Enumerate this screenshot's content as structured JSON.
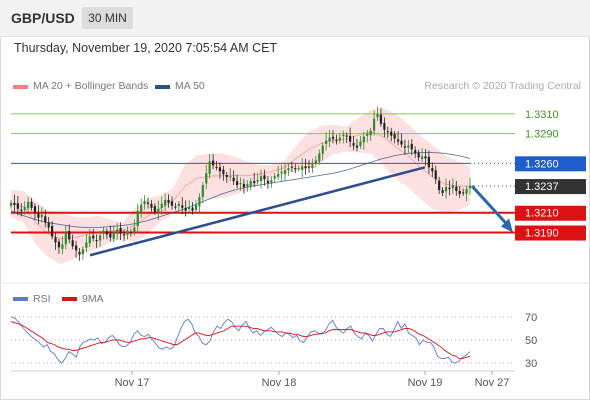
{
  "header": {
    "symbol": "GBP/USD",
    "timeframe": "30 MIN"
  },
  "timestamp": "Thursday, November 19, 2020 7:05:54 AM CET",
  "legend": {
    "bb_label": "MA 20 + Bollinger Bands",
    "ma50_label": "MA 50"
  },
  "credit": "Research © 2020 Trading Central",
  "indicator_legend": {
    "rsi_label": "RSI",
    "ma9_label": "9MA"
  },
  "colors": {
    "bb_band": "#fde0e0",
    "bb_line": "#f08080",
    "ma50": "#2e4d8f",
    "trendline": "#2e4d8f",
    "resistance_green": "#8fc45e",
    "pivot_blue": "#1f5ccc",
    "support_red": "#dd1111",
    "candle_up": "#2d8a2d",
    "candle_down": "#222222",
    "rsi": "#5b7ad6",
    "ma9": "#dd1111",
    "arrow": "#2e65b0"
  },
  "chart_data": [
    {
      "type": "candlestick",
      "title": "GBP/USD",
      "x_labels": [
        "Nov 17",
        "Nov 18",
        "Nov 19",
        "Nov 27"
      ],
      "ylim": [
        1.3146,
        1.3318
      ],
      "levels": [
        {
          "label": "1.3310",
          "value": 1.331,
          "color": "#8fc45e",
          "kind": "resistance"
        },
        {
          "label": "1.3290",
          "value": 1.329,
          "color": "#8fc45e",
          "kind": "resistance"
        },
        {
          "label": "1.3260",
          "value": 1.326,
          "color": "#1f5ccc",
          "kind": "pivot"
        },
        {
          "label": "1.3237",
          "value": 1.3237,
          "color": "#333333",
          "kind": "last price"
        },
        {
          "label": "1.3210",
          "value": 1.321,
          "color": "#dd1111",
          "kind": "support"
        },
        {
          "label": "1.3190",
          "value": 1.319,
          "color": "#dd1111",
          "kind": "support"
        }
      ],
      "close_series": [
        1.322,
        1.3218,
        1.3214,
        1.3212,
        1.3216,
        1.3221,
        1.3215,
        1.321,
        1.3205,
        1.3208,
        1.32,
        1.3195,
        1.3186,
        1.318,
        1.3175,
        1.3178,
        1.319,
        1.3183,
        1.3176,
        1.3172,
        1.3168,
        1.3173,
        1.318,
        1.3186,
        1.3184,
        1.3182,
        1.3187,
        1.3192,
        1.3188,
        1.3185,
        1.319,
        1.3193,
        1.3189,
        1.3187,
        1.3192,
        1.319,
        1.3195,
        1.3212,
        1.3218,
        1.3222,
        1.3219,
        1.3215,
        1.3211,
        1.3214,
        1.3219,
        1.3223,
        1.322,
        1.3217,
        1.3216,
        1.3219,
        1.3215,
        1.3212,
        1.3216,
        1.3212,
        1.3218,
        1.3226,
        1.3238,
        1.325,
        1.3262,
        1.3258,
        1.3256,
        1.3252,
        1.3249,
        1.3246,
        1.3247,
        1.3242,
        1.3238,
        1.324,
        1.3236,
        1.3239,
        1.3242,
        1.324,
        1.3243,
        1.3247,
        1.3244,
        1.324,
        1.3243,
        1.3247,
        1.3249,
        1.3251,
        1.3253,
        1.3255,
        1.3256,
        1.3254,
        1.3255,
        1.3257,
        1.3255,
        1.3256,
        1.3259,
        1.3263,
        1.327,
        1.3278,
        1.3283,
        1.3286,
        1.3285,
        1.3283,
        1.3286,
        1.3289,
        1.3287,
        1.3282,
        1.3278,
        1.3276,
        1.3282,
        1.3287,
        1.329,
        1.3293,
        1.3305,
        1.331,
        1.33,
        1.3294,
        1.3292,
        1.3288,
        1.3285,
        1.3282,
        1.3279,
        1.3276,
        1.3278,
        1.3274,
        1.327,
        1.3266,
        1.3267,
        1.3265,
        1.3256,
        1.3252,
        1.3244,
        1.3233,
        1.323,
        1.3236,
        1.3234,
        1.3238,
        1.3232,
        1.3229,
        1.323,
        1.3234,
        1.3237
      ],
      "ma50_series": [
        1.3212,
        1.3207,
        1.3203,
        1.32,
        1.3198,
        1.3196,
        1.3195,
        1.3195,
        1.3196,
        1.3197,
        1.3199,
        1.3202,
        1.3206,
        1.321,
        1.3214,
        1.3219,
        1.3224,
        1.3229,
        1.3233,
        1.3236,
        1.3238,
        1.324,
        1.3242,
        1.3244,
        1.3246,
        1.3248,
        1.325,
        1.3253,
        1.3257,
        1.3261,
        1.3265,
        1.3268,
        1.327,
        1.3271,
        1.3271,
        1.327,
        1.3268,
        1.3265
      ],
      "bb_upper": [
        1.3233,
        1.3232,
        1.3222,
        1.3212,
        1.321,
        1.3206,
        1.3205,
        1.3207,
        1.3203,
        1.32,
        1.3215,
        1.3224,
        1.3228,
        1.3234,
        1.3258,
        1.3268,
        1.327,
        1.327,
        1.3267,
        1.3262,
        1.3258,
        1.3258,
        1.3262,
        1.3278,
        1.3292,
        1.3298,
        1.3299,
        1.3297,
        1.3306,
        1.3314,
        1.3316,
        1.331,
        1.33,
        1.3288,
        1.3278,
        1.3268,
        1.3262,
        1.3256
      ],
      "bb_lower": [
        1.3206,
        1.32,
        1.3178,
        1.3165,
        1.3158,
        1.3163,
        1.317,
        1.3174,
        1.318,
        1.3184,
        1.318,
        1.3189,
        1.32,
        1.3208,
        1.3215,
        1.3222,
        1.3224,
        1.3225,
        1.3228,
        1.3233,
        1.324,
        1.3245,
        1.3249,
        1.3252,
        1.3256,
        1.3262,
        1.3269,
        1.3272,
        1.3271,
        1.327,
        1.3258,
        1.3244,
        1.3236,
        1.3224,
        1.3214,
        1.321,
        1.3212,
        1.3218
      ],
      "trendline": [
        {
          "from": 1.3167
        },
        {
          "to": 1.3256
        }
      ],
      "forecast_arrow": {
        "from": 1.3237,
        "to": 1.319
      }
    },
    {
      "type": "line",
      "title": "RSI",
      "ylim": [
        24,
        76
      ],
      "y_ticks": [
        70,
        50,
        30
      ],
      "series": [
        {
          "name": "RSI",
          "values": [
            70,
            69,
            66,
            62,
            58,
            55,
            52,
            50,
            47,
            44,
            46,
            40,
            38,
            33,
            30,
            34,
            40,
            38,
            35,
            44,
            48,
            49,
            51,
            50,
            52,
            47,
            48,
            52,
            54,
            51,
            46,
            44,
            45,
            48,
            55,
            58,
            54,
            53,
            55,
            51,
            47,
            43,
            42,
            44,
            42,
            44,
            52,
            60,
            66,
            68,
            64,
            56,
            53,
            47,
            46,
            49,
            57,
            62,
            60,
            65,
            68,
            66,
            61,
            58,
            63,
            66,
            60,
            56,
            58,
            54,
            57,
            59,
            61,
            58,
            55,
            53,
            56,
            55,
            52,
            54,
            49,
            48,
            53,
            57,
            58,
            56,
            55,
            58,
            64,
            67,
            61,
            58,
            56,
            60,
            62,
            56,
            53,
            51,
            56,
            54,
            49,
            55,
            60,
            60,
            55,
            53,
            59,
            66,
            60,
            64,
            56,
            54,
            52,
            46,
            50,
            48,
            48,
            44,
            36,
            34,
            34,
            35,
            31,
            30,
            32,
            35,
            37,
            40
          ]
        },
        {
          "name": "9MA",
          "values": [
            66,
            65,
            64,
            63,
            61,
            59,
            57,
            55,
            53,
            51,
            48,
            47,
            46,
            44,
            43,
            42,
            42,
            41,
            41,
            42,
            43,
            44,
            45,
            46,
            47,
            48,
            48,
            49,
            50,
            50,
            50,
            49,
            48,
            48,
            49,
            50,
            51,
            51,
            52,
            52,
            51,
            50,
            49,
            48,
            47,
            46,
            46,
            48,
            50,
            52,
            54,
            56,
            56,
            55,
            54,
            54,
            55,
            56,
            57,
            58,
            60,
            62,
            62,
            62,
            62,
            62,
            61,
            60,
            60,
            59,
            58,
            58,
            58,
            57,
            57,
            57,
            56,
            56,
            55,
            55,
            54,
            53,
            53,
            54,
            55,
            55,
            56,
            56,
            58,
            59,
            59,
            59,
            59,
            59,
            59,
            58,
            57,
            56,
            56,
            55,
            54,
            54,
            55,
            56,
            57,
            57,
            57,
            58,
            59,
            60,
            60,
            59,
            57,
            55,
            54,
            52,
            50,
            48,
            46,
            44,
            41,
            39,
            37,
            36,
            34,
            34,
            35,
            36
          ]
        }
      ]
    }
  ]
}
